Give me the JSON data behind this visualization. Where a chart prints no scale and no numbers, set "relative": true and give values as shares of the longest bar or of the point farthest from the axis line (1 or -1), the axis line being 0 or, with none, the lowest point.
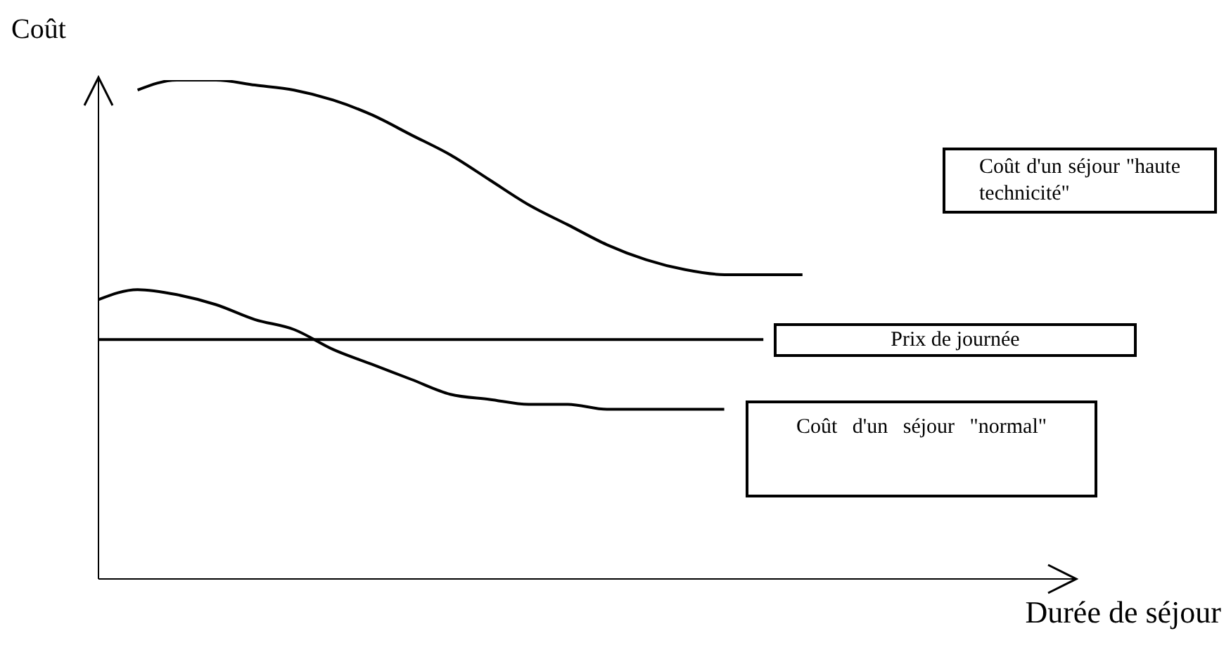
{
  "chart_data": {
    "type": "line",
    "relative": true,
    "xlabel": "Durée de séjour",
    "ylabel": "Coût",
    "categories": [
      null,
      null,
      null,
      null,
      null,
      null,
      null,
      null,
      null,
      null,
      null,
      null,
      null,
      null,
      null,
      null,
      null,
      null,
      null,
      null,
      null,
      null,
      null,
      null,
      null,
      null
    ],
    "series": [
      {
        "name": "Coût d'un séjour \"haute technicité\"",
        "color": "#000000",
        "values": [
          null,
          0.98,
          1.0,
          1.0,
          0.99,
          0.98,
          0.96,
          0.93,
          0.89,
          0.85,
          0.8,
          0.75,
          0.71,
          0.67,
          0.64,
          0.62,
          0.61,
          0.61,
          0.61,
          null,
          null,
          null,
          null,
          null,
          null,
          null
        ]
      },
      {
        "name": "Prix de journée",
        "color": "#000000",
        "values": [
          0.48,
          0.48,
          0.48,
          0.48,
          0.48,
          0.48,
          0.48,
          0.48,
          0.48,
          0.48,
          0.48,
          0.48,
          0.48,
          0.48,
          0.48,
          0.48,
          0.48,
          0.48,
          null,
          null,
          null,
          null,
          null,
          null,
          null,
          null
        ]
      },
      {
        "name": "Coût d'un séjour \"normal\"",
        "color": "#000000",
        "values": [
          0.56,
          0.58,
          0.57,
          0.55,
          0.52,
          0.5,
          0.46,
          0.43,
          0.4,
          0.37,
          0.36,
          0.35,
          0.35,
          0.34,
          0.34,
          0.34,
          0.34,
          null,
          null,
          null,
          null,
          null,
          null,
          null,
          null,
          null
        ]
      }
    ]
  }
}
